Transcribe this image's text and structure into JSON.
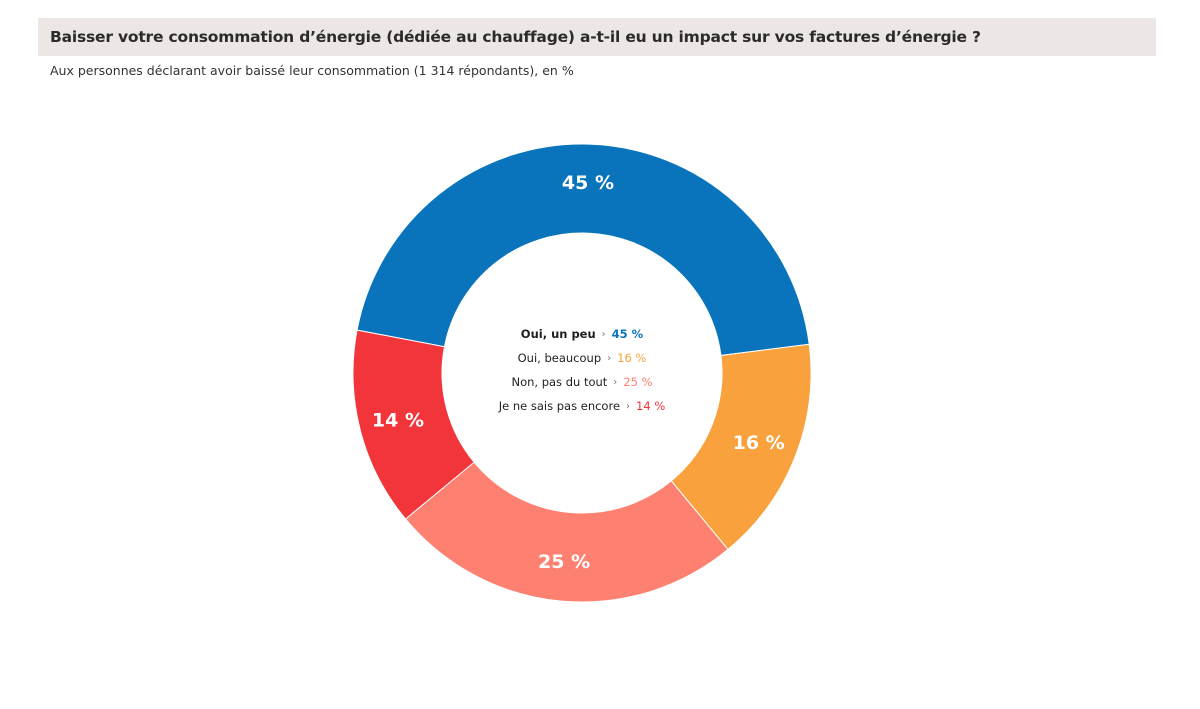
{
  "header": {
    "title": "Baisser votre consommation d’énergie (dédiée au chauffage) a-t-il eu un impact sur vos factures d’énergie ?",
    "subtitle": "Aux personnes déclarant avoir baissé leur consommation (1 314  répondants), en %"
  },
  "chart_data": {
    "type": "pie",
    "variant": "donut",
    "unit": "%",
    "categories": [
      "Oui, un peu",
      "Oui, beaucoup",
      "Non, pas du tout",
      "Je ne sais pas encore"
    ],
    "values": [
      45,
      16,
      25,
      14
    ],
    "labels": [
      "45 %",
      "16 %",
      "25 %",
      "14 %"
    ],
    "colors": [
      "#0973bb",
      "#f9a13c",
      "#fe8070",
      "#f2353b"
    ],
    "legend": {
      "placement": "center",
      "separator": "›",
      "items": [
        {
          "label": "Oui, un peu",
          "value_text": "45 %",
          "color": "#0973bb",
          "emphasis": true
        },
        {
          "label": "Oui, beaucoup",
          "value_text": "16 %",
          "color": "#f9a13c",
          "emphasis": false
        },
        {
          "label": "Non, pas du tout",
          "value_text": "25 %",
          "color": "#fe8070",
          "emphasis": false
        },
        {
          "label": "Je ne sais pas encore",
          "value_text": "14 %",
          "color": "#f2353b",
          "emphasis": false
        }
      ]
    }
  }
}
